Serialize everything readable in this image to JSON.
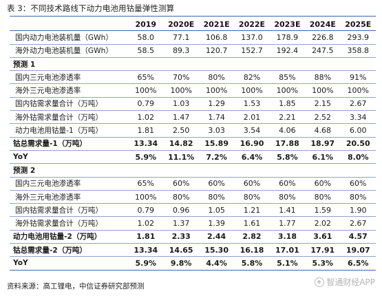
{
  "title": "表 3：不同技术路线下动力电池用钴量弹性测算",
  "columns": [
    "",
    "2019",
    "2020E",
    "2021E",
    "2022E",
    "2023E",
    "2024E",
    "2025E"
  ],
  "rows": [
    {
      "type": "data",
      "cells": [
        "国内动力电池装机量（GWh）",
        "58.0",
        "77.1",
        "106.8",
        "137.0",
        "178.9",
        "226.8",
        "293.9"
      ]
    },
    {
      "type": "data",
      "cells": [
        "海外动力电池装机量（GWh）",
        "58.5",
        "89.3",
        "120.7",
        "152.7",
        "192.4",
        "247.5",
        "358.8"
      ]
    },
    {
      "type": "section",
      "cells": [
        "预测 1",
        "",
        "",
        "",
        "",
        "",
        "",
        ""
      ]
    },
    {
      "type": "data",
      "cells": [
        "国内三元电池渗透率",
        "65%",
        "70%",
        "80%",
        "82%",
        "85%",
        "88%",
        "91%"
      ]
    },
    {
      "type": "data",
      "cells": [
        "海外三元电池渗透率",
        "100%",
        "100%",
        "100%",
        "100%",
        "100%",
        "100%",
        "100%"
      ]
    },
    {
      "type": "data",
      "cells": [
        "国内钴需求量合计（万吨）",
        "0.79",
        "1.03",
        "1.29",
        "1.53",
        "1.85",
        "2.15",
        "2.67"
      ]
    },
    {
      "type": "data",
      "cells": [
        "海外钴需求量合计（万吨）",
        "1.02",
        "1.47",
        "1.74",
        "2.01",
        "2.21",
        "2.52",
        "3.34"
      ]
    },
    {
      "type": "data",
      "cells": [
        "动力电池用钴量-1（万吨）",
        "1.81",
        "2.50",
        "3.03",
        "3.54",
        "4.06",
        "4.68",
        "6.00"
      ]
    },
    {
      "type": "bold",
      "cells": [
        "钴总需求量-1（万吨）",
        "13.34",
        "14.82",
        "15.89",
        "16.90",
        "17.88",
        "18.97",
        "20.50"
      ]
    },
    {
      "type": "bold",
      "cells": [
        "YoY",
        "5.9%",
        "11.1%",
        "7.2%",
        "6.4%",
        "5.8%",
        "6.1%",
        "8.0%"
      ]
    },
    {
      "type": "section",
      "cells": [
        "预测 2",
        "",
        "",
        "",
        "",
        "",
        "",
        ""
      ]
    },
    {
      "type": "data",
      "cells": [
        "国内三元电池渗透率",
        "65%",
        "60%",
        "60%",
        "60%",
        "60%",
        "60%",
        "60%"
      ]
    },
    {
      "type": "data",
      "cells": [
        "海外三元电池渗透率",
        "100%",
        "80%",
        "80%",
        "80%",
        "80%",
        "80%",
        "80%"
      ]
    },
    {
      "type": "data",
      "cells": [
        "国内钴需求量合计（万吨）",
        "0.79",
        "0.96",
        "1.05",
        "1.21",
        "1.41",
        "1.59",
        "1.90"
      ]
    },
    {
      "type": "data",
      "cells": [
        "海外钴需求量合计（万吨）",
        "1.02",
        "1.37",
        "1.39",
        "1.61",
        "1.77",
        "2.02",
        "2.67"
      ]
    },
    {
      "type": "bold",
      "cells": [
        "动力电池用钴量-2（万吨）",
        "1.81",
        "2.33",
        "2.44",
        "2.82",
        "3.18",
        "3.61",
        "4.57"
      ]
    },
    {
      "type": "bold",
      "cells": [
        "钴总需求量-2（万吨）",
        "13.34",
        "14.65",
        "15.30",
        "16.18",
        "17.01",
        "17.91",
        "19.07"
      ]
    },
    {
      "type": "bold",
      "cells": [
        "YoY",
        "5.9%",
        "9.8%",
        "4.4%",
        "5.8%",
        "5.1%",
        "5.3%",
        "6.5%"
      ]
    }
  ],
  "source": "资料来源：高工锂电，中信证券研究部预测",
  "watermark": "智通财经APP",
  "watermark_icon": "watermark-logo-icon"
}
